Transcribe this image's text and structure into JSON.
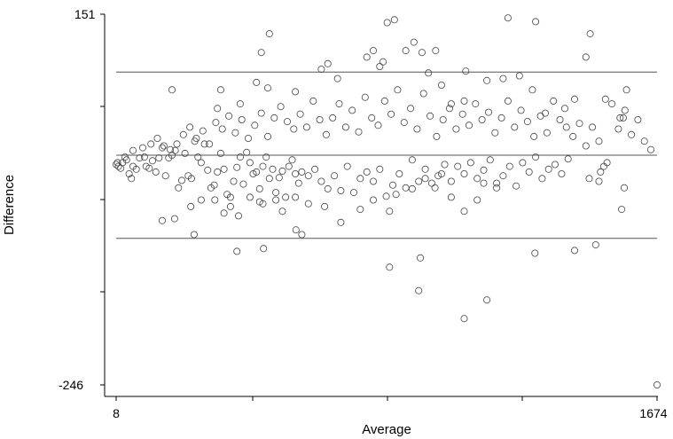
{
  "chart_data": {
    "type": "scatter",
    "title": "",
    "xlabel": "Average",
    "ylabel": "Difference",
    "xlim": [
      8,
      1674
    ],
    "ylim": [
      -246,
      151
    ],
    "x_tick_labels": [
      "8",
      "1674"
    ],
    "y_tick_labels": [
      "151",
      "-246"
    ],
    "grid": false,
    "reference_lines": {
      "mean": 0,
      "upper_limit": 89,
      "lower_limit": -89
    },
    "series": [
      {
        "points": [
          [
            8,
            -10
          ],
          [
            12,
            -8
          ],
          [
            15,
            -12
          ],
          [
            22,
            -14
          ],
          [
            28,
            -8
          ],
          [
            35,
            -2
          ],
          [
            40,
            -5
          ],
          [
            48,
            -20
          ],
          [
            55,
            -25
          ],
          [
            60,
            -12
          ],
          [
            70,
            -15
          ],
          [
            80,
            -3
          ],
          [
            95,
            -2
          ],
          [
            100,
            -12
          ],
          [
            110,
            -14
          ],
          [
            120,
            -6
          ],
          [
            130,
            -18
          ],
          [
            140,
            -3
          ],
          [
            150,
            8
          ],
          [
            160,
            -22
          ],
          [
            170,
            -3
          ],
          [
            180,
            0
          ],
          [
            190,
            5
          ],
          [
            200,
            -35
          ],
          [
            210,
            -27
          ],
          [
            220,
            2
          ],
          [
            230,
            -22
          ],
          [
            240,
            -25
          ],
          [
            250,
            15
          ],
          [
            260,
            -2
          ],
          [
            270,
            -8
          ],
          [
            280,
            12
          ],
          [
            290,
            -16
          ],
          [
            300,
            -35
          ],
          [
            310,
            -32
          ],
          [
            320,
            -18
          ],
          [
            330,
            2
          ],
          [
            340,
            -15
          ],
          [
            350,
            -42
          ],
          [
            360,
            -45
          ],
          [
            370,
            -28
          ],
          [
            380,
            -13
          ],
          [
            390,
            -2
          ],
          [
            400,
            -31
          ],
          [
            410,
            3
          ],
          [
            420,
            -8
          ],
          [
            430,
            -20
          ],
          [
            440,
            -18
          ],
          [
            450,
            -36
          ],
          [
            460,
            -12
          ],
          [
            470,
            -2
          ],
          [
            480,
            -25
          ],
          [
            490,
            -15
          ],
          [
            500,
            -40
          ],
          [
            510,
            -24
          ],
          [
            520,
            -17
          ],
          [
            530,
            -45
          ],
          [
            540,
            -12
          ],
          [
            550,
            -5
          ],
          [
            560,
            -20
          ],
          [
            570,
            -30
          ],
          [
            580,
            -18
          ],
          [
            600,
            -22
          ],
          [
            620,
            -15
          ],
          [
            640,
            -28
          ],
          [
            660,
            -36
          ],
          [
            680,
            -22
          ],
          [
            700,
            -38
          ],
          [
            720,
            -12
          ],
          [
            740,
            -40
          ],
          [
            760,
            -25
          ],
          [
            780,
            -18
          ],
          [
            800,
            -28
          ],
          [
            820,
            -15
          ],
          [
            840,
            -44
          ],
          [
            860,
            -32
          ],
          [
            880,
            -20
          ],
          [
            900,
            -35
          ],
          [
            920,
            -5
          ],
          [
            940,
            -28
          ],
          [
            960,
            -15
          ],
          [
            980,
            -30
          ],
          [
            1000,
            -22
          ],
          [
            1020,
            -10
          ],
          [
            1040,
            -28
          ],
          [
            1060,
            -12
          ],
          [
            1080,
            -20
          ],
          [
            1100,
            -8
          ],
          [
            1120,
            -25
          ],
          [
            1140,
            -16
          ],
          [
            1160,
            -5
          ],
          [
            1180,
            -30
          ],
          [
            1200,
            -22
          ],
          [
            1220,
            -12
          ],
          [
            1240,
            -33
          ],
          [
            1260,
            -8
          ],
          [
            1280,
            -18
          ],
          [
            1300,
            -2
          ],
          [
            1320,
            -25
          ],
          [
            1340,
            -15
          ],
          [
            1360,
            -10
          ],
          [
            1380,
            -20
          ],
          [
            1400,
            -4
          ],
          [
            60,
            5
          ],
          [
            90,
            8
          ],
          [
            115,
            12
          ],
          [
            135,
            18
          ],
          [
            155,
            10
          ],
          [
            175,
            6
          ],
          [
            195,
            12
          ],
          [
            215,
            22
          ],
          [
            235,
            30
          ],
          [
            255,
            18
          ],
          [
            275,
            26
          ],
          [
            295,
            12
          ],
          [
            315,
            35
          ],
          [
            335,
            28
          ],
          [
            355,
            42
          ],
          [
            375,
            24
          ],
          [
            395,
            38
          ],
          [
            415,
            18
          ],
          [
            435,
            32
          ],
          [
            455,
            45
          ],
          [
            475,
            20
          ],
          [
            495,
            40
          ],
          [
            515,
            52
          ],
          [
            535,
            36
          ],
          [
            555,
            28
          ],
          [
            575,
            44
          ],
          [
            595,
            30
          ],
          [
            615,
            58
          ],
          [
            635,
            38
          ],
          [
            655,
            22
          ],
          [
            675,
            40
          ],
          [
            695,
            55
          ],
          [
            715,
            30
          ],
          [
            735,
            48
          ],
          [
            755,
            25
          ],
          [
            775,
            62
          ],
          [
            795,
            40
          ],
          [
            815,
            32
          ],
          [
            835,
            58
          ],
          [
            855,
            44
          ],
          [
            875,
            70
          ],
          [
            895,
            35
          ],
          [
            915,
            50
          ],
          [
            935,
            28
          ],
          [
            955,
            66
          ],
          [
            975,
            42
          ],
          [
            995,
            20
          ],
          [
            1015,
            38
          ],
          [
            1035,
            50
          ],
          [
            1055,
            28
          ],
          [
            1075,
            44
          ],
          [
            1095,
            32
          ],
          [
            1115,
            55
          ],
          [
            1135,
            38
          ],
          [
            1155,
            46
          ],
          [
            1175,
            24
          ],
          [
            1195,
            40
          ],
          [
            1215,
            58
          ],
          [
            1235,
            30
          ],
          [
            1255,
            48
          ],
          [
            1275,
            36
          ],
          [
            1295,
            20
          ],
          [
            1315,
            42
          ],
          [
            1335,
            24
          ],
          [
            1355,
            58
          ],
          [
            1375,
            38
          ],
          [
            1395,
            30
          ],
          [
            1415,
            20
          ],
          [
            1435,
            34
          ],
          [
            1455,
            10
          ],
          [
            1475,
            30
          ],
          [
            1495,
            15
          ],
          [
            1515,
            60
          ],
          [
            1535,
            55
          ],
          [
            1555,
            28
          ],
          [
            1575,
            48
          ],
          [
            1595,
            22
          ],
          [
            1615,
            38
          ],
          [
            1635,
            15
          ],
          [
            1655,
            6
          ],
          [
            150,
            -70
          ],
          [
            188,
            -68
          ],
          [
            238,
            -55
          ],
          [
            248,
            -85
          ],
          [
            270,
            -48
          ],
          [
            312,
            -48
          ],
          [
            340,
            -62
          ],
          [
            360,
            -55
          ],
          [
            385,
            -65
          ],
          [
            420,
            -45
          ],
          [
            450,
            -50
          ],
          [
            460,
            -52
          ],
          [
            500,
            -48
          ],
          [
            520,
            -60
          ],
          [
            560,
            -45
          ],
          [
            600,
            -52
          ],
          [
            650,
            -55
          ],
          [
            700,
            -72
          ],
          [
            760,
            -58
          ],
          [
            800,
            -48
          ],
          [
            850,
            -60
          ],
          [
            870,
            -42
          ],
          [
            920,
            -36
          ],
          [
            960,
            -25
          ],
          [
            990,
            -35
          ],
          [
            1010,
            -20
          ],
          [
            1040,
            -45
          ],
          [
            1080,
            -60
          ],
          [
            1120,
            -48
          ],
          [
            1140,
            -30
          ],
          [
            1180,
            -35
          ],
          [
            380,
            -103
          ],
          [
            462,
            -100
          ],
          [
            562,
            -80
          ],
          [
            580,
            -85
          ],
          [
            850,
            -120
          ],
          [
            945,
            -110
          ],
          [
            940,
            -145
          ],
          [
            1080,
            -175
          ],
          [
            1150,
            -155
          ],
          [
            1298,
            -105
          ],
          [
            1420,
            -102
          ],
          [
            1485,
            -96
          ],
          [
            1465,
            -25
          ],
          [
            1500,
            -18
          ],
          [
            1573,
            -35
          ],
          [
            1510,
            -12
          ],
          [
            1520,
            -8
          ],
          [
            1495,
            -28
          ],
          [
            1565,
            -58
          ],
          [
            180,
            70
          ],
          [
            320,
            50
          ],
          [
            330,
            70
          ],
          [
            390,
            55
          ],
          [
            440,
            78
          ],
          [
            475,
            72
          ],
          [
            560,
            68
          ],
          [
            640,
            92
          ],
          [
            660,
            98
          ],
          [
            690,
            82
          ],
          [
            780,
            105
          ],
          [
            800,
            112
          ],
          [
            820,
            95
          ],
          [
            830,
            100
          ],
          [
            900,
            112
          ],
          [
            950,
            110
          ],
          [
            970,
            88
          ],
          [
            1010,
            75
          ],
          [
            1040,
            55
          ],
          [
            1080,
            58
          ],
          [
            1150,
            80
          ],
          [
            1200,
            82
          ],
          [
            1250,
            85
          ],
          [
            1290,
            70
          ],
          [
            1330,
            45
          ],
          [
            1390,
            50
          ],
          [
            1420,
            60
          ],
          [
            1455,
            105
          ],
          [
            1468,
            130
          ],
          [
            1560,
            40
          ],
          [
            1570,
            40
          ],
          [
            1580,
            70
          ],
          [
            455,
            110
          ],
          [
            480,
            130
          ],
          [
            843,
            142
          ],
          [
            865,
            145
          ],
          [
            925,
            121
          ],
          [
            992,
            112
          ],
          [
            1085,
            90
          ],
          [
            1215,
            147
          ],
          [
            1300,
            143
          ],
          [
            1674,
            -246
          ]
        ]
      }
    ]
  }
}
